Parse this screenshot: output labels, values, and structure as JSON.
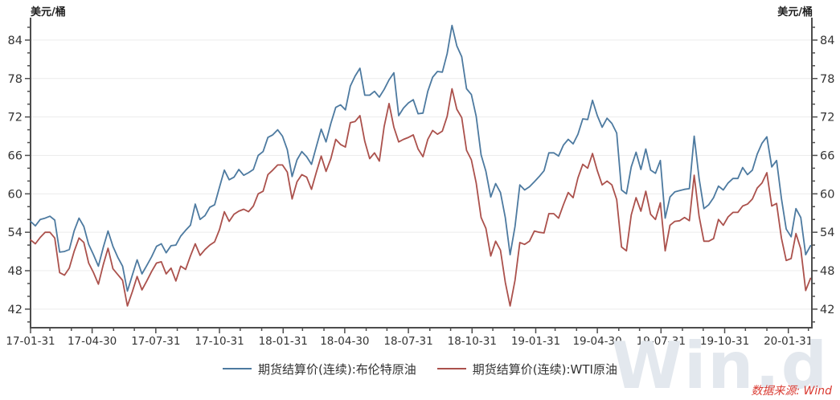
{
  "chart": {
    "unit_label_left": "美元/桶",
    "unit_label_right": "美元/桶",
    "source_label": "数据来源: Wind",
    "watermark": "Win.d",
    "colors": {
      "brent_line": "#4d7aa0",
      "wti_line": "#ab514c",
      "axis": "#4d4d4d",
      "grid": "#ececec",
      "tick_text": "#333333",
      "source_text": "#d93a31",
      "watermark": "#e3e8ee"
    }
  },
  "chart_data": {
    "type": "line",
    "title": "",
    "xlabel": "",
    "ylabel": "美元/桶",
    "ylim": [
      39.1,
      87.5
    ],
    "y_major_ticks": [
      42,
      48,
      54,
      60,
      66,
      72,
      78,
      84
    ],
    "y_minor_step": 2,
    "grid": "horizontal-only",
    "legend_position": "bottom",
    "x_start_date": "2017-01-31",
    "x_end_date": "2020-03-05",
    "sample_interval_days": 7,
    "x_tick_labels": [
      "17-01-31",
      "17-04-30",
      "17-07-31",
      "17-10-31",
      "18-01-31",
      "18-04-30",
      "18-07-31",
      "18-10-31",
      "19-01-31",
      "19-04-30",
      "19-07-31",
      "19-10-31",
      "20-01-31"
    ],
    "series": [
      {
        "name": "期货结算价(连续):布伦特原油",
        "color": "#4d7aa0",
        "values": [
          55.7,
          55.0,
          56.0,
          56.2,
          56.5,
          55.9,
          50.9,
          51.0,
          51.3,
          54.2,
          56.2,
          54.9,
          52.1,
          50.5,
          48.7,
          51.6,
          54.2,
          51.8,
          50.1,
          48.7,
          44.8,
          47.3,
          49.7,
          47.5,
          48.8,
          50.2,
          51.8,
          52.2,
          50.8,
          51.9,
          52.0,
          53.4,
          54.3,
          55.1,
          58.4,
          56.0,
          56.6,
          57.9,
          58.3,
          61.0,
          63.7,
          62.2,
          62.6,
          63.8,
          62.9,
          63.3,
          63.8,
          66.0,
          66.6,
          68.8,
          69.2,
          70.0,
          69.0,
          66.9,
          62.7,
          65.3,
          66.6,
          65.8,
          64.6,
          67.4,
          70.1,
          68.1,
          71.0,
          73.5,
          73.9,
          73.1,
          76.8,
          78.4,
          79.6,
          75.4,
          75.4,
          76.0,
          75.1,
          76.3,
          77.8,
          78.9,
          72.2,
          73.4,
          74.2,
          74.7,
          72.5,
          72.6,
          76.0,
          78.2,
          79.1,
          79.0,
          81.9,
          86.3,
          83.1,
          81.4,
          76.4,
          75.5,
          72.1,
          66.1,
          63.5,
          59.5,
          61.6,
          60.2,
          56.3,
          50.5,
          54.9,
          61.4,
          60.6,
          61.1,
          61.9,
          62.7,
          63.6,
          66.4,
          66.4,
          65.9,
          67.6,
          68.5,
          67.8,
          69.3,
          71.7,
          71.6,
          74.6,
          72.2,
          70.4,
          71.8,
          71.0,
          69.5,
          60.6,
          60.0,
          64.2,
          66.5,
          63.8,
          67.0,
          63.7,
          63.2,
          65.2,
          56.2,
          59.5,
          60.3,
          60.5,
          60.7,
          60.8,
          69.0,
          62.4,
          57.7,
          58.3,
          59.4,
          61.2,
          60.6,
          61.7,
          62.4,
          62.4,
          64.1,
          63.0,
          63.7,
          66.2,
          67.9,
          68.9,
          64.2,
          65.2,
          59.3,
          54.5,
          53.3,
          57.7,
          56.3,
          50.5,
          51.9
        ]
      },
      {
        "name": "期货结算价(连续):WTI原油",
        "color": "#ab514c",
        "values": [
          52.8,
          52.2,
          53.2,
          54.0,
          54.0,
          53.1,
          47.7,
          47.3,
          48.4,
          51.0,
          53.1,
          52.4,
          49.2,
          47.7,
          45.9,
          48.9,
          51.5,
          48.3,
          47.4,
          46.5,
          42.5,
          44.7,
          47.1,
          45.0,
          46.4,
          47.9,
          49.2,
          49.4,
          47.5,
          48.4,
          46.4,
          48.7,
          48.2,
          50.3,
          52.2,
          50.4,
          51.3,
          52.0,
          52.5,
          54.4,
          57.2,
          55.7,
          56.8,
          57.3,
          57.6,
          57.2,
          58.1,
          60.0,
          60.4,
          63.0,
          63.7,
          64.5,
          64.5,
          63.4,
          59.2,
          61.9,
          63.0,
          62.6,
          60.7,
          63.4,
          65.9,
          63.5,
          65.5,
          68.5,
          67.7,
          67.3,
          71.1,
          71.3,
          72.2,
          68.2,
          65.5,
          66.4,
          65.1,
          70.5,
          74.1,
          70.4,
          68.1,
          68.5,
          68.8,
          69.2,
          67.0,
          65.8,
          68.5,
          69.9,
          69.3,
          69.8,
          72.1,
          76.4,
          73.2,
          71.9,
          66.8,
          65.3,
          61.7,
          56.3,
          54.6,
          50.3,
          52.6,
          51.2,
          46.2,
          42.5,
          46.5,
          52.4,
          52.1,
          52.6,
          54.2,
          54.0,
          53.9,
          56.9,
          56.9,
          56.2,
          58.3,
          60.2,
          59.4,
          62.5,
          64.6,
          64.0,
          66.3,
          63.6,
          61.4,
          62.0,
          61.4,
          59.1,
          51.7,
          51.1,
          56.7,
          59.4,
          57.3,
          60.4,
          56.8,
          56.0,
          58.6,
          51.1,
          55.1,
          55.7,
          55.8,
          56.3,
          55.8,
          62.9,
          56.5,
          52.6,
          52.6,
          53.0,
          56.0,
          55.1,
          56.4,
          57.1,
          57.1,
          58.1,
          58.4,
          59.2,
          60.9,
          61.7,
          63.3,
          58.1,
          58.5,
          53.1,
          49.6,
          49.9,
          53.8,
          51.4,
          44.9,
          46.8
        ]
      }
    ]
  }
}
